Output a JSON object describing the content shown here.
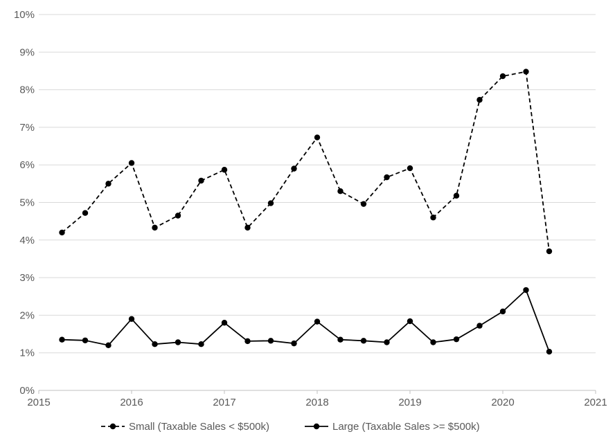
{
  "chart_data": {
    "type": "line",
    "title": "",
    "xlabel": "",
    "ylabel": "",
    "xlim": [
      2015,
      2021
    ],
    "ylim": [
      0,
      10
    ],
    "x_ticks": [
      "2015",
      "2016",
      "2017",
      "2018",
      "2019",
      "2020",
      "2021"
    ],
    "y_ticks": [
      "0%",
      "1%",
      "2%",
      "3%",
      "4%",
      "5%",
      "6%",
      "7%",
      "8%",
      "9%",
      "10%"
    ],
    "grid": true,
    "legend_position": "bottom",
    "x": [
      2015.25,
      2015.5,
      2015.75,
      2016.0,
      2016.25,
      2016.5,
      2016.75,
      2017.0,
      2017.25,
      2017.5,
      2017.75,
      2018.0,
      2018.25,
      2018.5,
      2018.75,
      2019.0,
      2019.25,
      2019.5,
      2019.75,
      2020.0,
      2020.25,
      2020.5
    ],
    "series": [
      {
        "name": "Small (Taxable Sales < $500k)",
        "style": "dashed",
        "color": "#000000",
        "values": [
          4.2,
          4.72,
          5.5,
          6.05,
          4.33,
          4.65,
          5.58,
          5.87,
          4.33,
          4.98,
          5.9,
          6.73,
          5.3,
          4.96,
          5.67,
          5.91,
          4.6,
          5.18,
          7.73,
          8.36,
          8.48,
          3.7
        ]
      },
      {
        "name": "Large (Taxable Sales >= $500k)",
        "style": "solid",
        "color": "#000000",
        "values": [
          1.35,
          1.33,
          1.2,
          1.9,
          1.23,
          1.28,
          1.23,
          1.8,
          1.31,
          1.32,
          1.25,
          1.83,
          1.35,
          1.32,
          1.28,
          1.84,
          1.28,
          1.36,
          1.72,
          2.1,
          2.67,
          1.03
        ]
      }
    ],
    "colors": {
      "grid": "#d9d9d9",
      "axis": "#bfbfbf",
      "text": "#595959"
    }
  }
}
